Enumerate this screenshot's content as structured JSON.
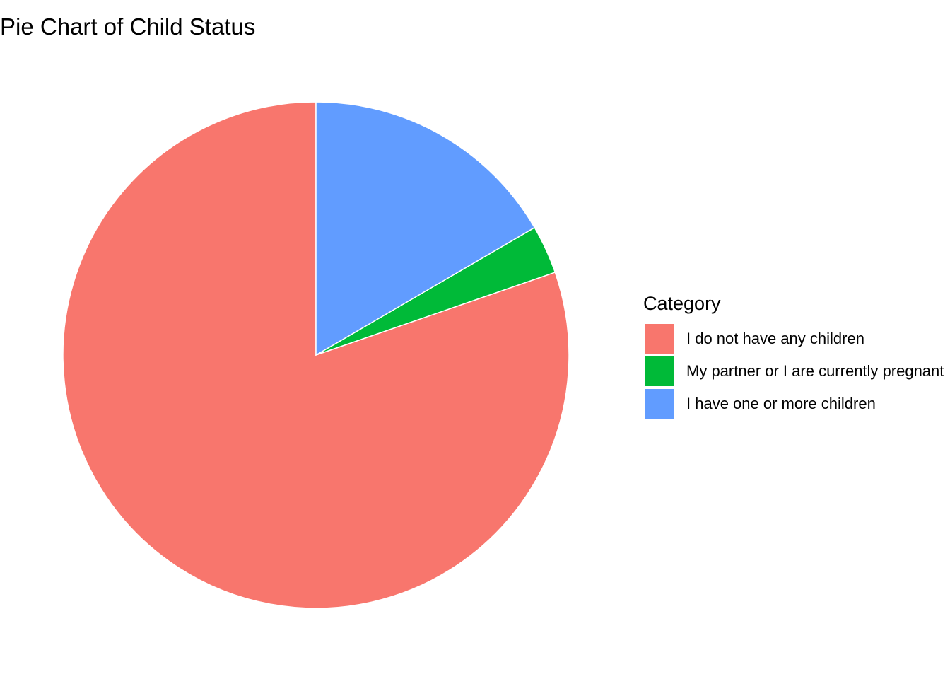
{
  "chart_data": {
    "type": "pie",
    "title": "Pie Chart of Child Status",
    "legend_title": "Category",
    "legend_position": "right",
    "start_angle": "12 o'clock",
    "direction": "counterclockwise",
    "categories": [
      "I do not have any children",
      "My partner or I are currently pregnant",
      "I have one or more children"
    ],
    "values": [
      80.3,
      3.1,
      16.6
    ],
    "unit": "percent",
    "colors": [
      "#F8766D",
      "#00BA38",
      "#619CFF"
    ]
  }
}
